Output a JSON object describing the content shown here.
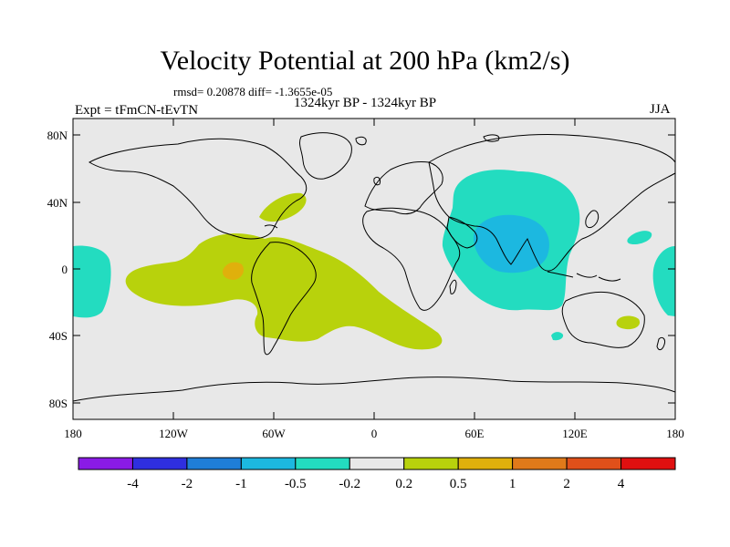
{
  "title": "Velocity Potential at 200 hPa (km2/s)",
  "stats": "rmsd= 0.20878 diff= -1.3655e-05",
  "left_label": "Expt = tFmCN-tEvTN",
  "center_label": "1324kyr BP - 1324kyr BP",
  "right_label": "JJA",
  "lat_labels": [
    "80N",
    "40N",
    "0",
    "40S",
    "80S"
  ],
  "lon_labels": [
    "180",
    "120W",
    "60W",
    "0",
    "60E",
    "120E",
    "180"
  ],
  "colorbar": {
    "colors": [
      "#8a1be6",
      "#2f2fe0",
      "#1f7ed8",
      "#1cb8e0",
      "#23dcc0",
      "#e8e8e8",
      "#b8d20c",
      "#e0b00c",
      "#e07a1a",
      "#e0501a",
      "#e01010"
    ],
    "labels": [
      "-4",
      "-2",
      "-1",
      "-0.5",
      "-0.2",
      "0.2",
      "0.5",
      "1",
      "2",
      "4"
    ]
  },
  "colors": {
    "ocean_background": "#e8e8e8",
    "positive_02": "#b8d20c",
    "positive_05": "#e0b00c",
    "positive_1": "#e07a1a",
    "negative_02": "#23dcc0",
    "negative_05": "#1cb8e0"
  }
}
